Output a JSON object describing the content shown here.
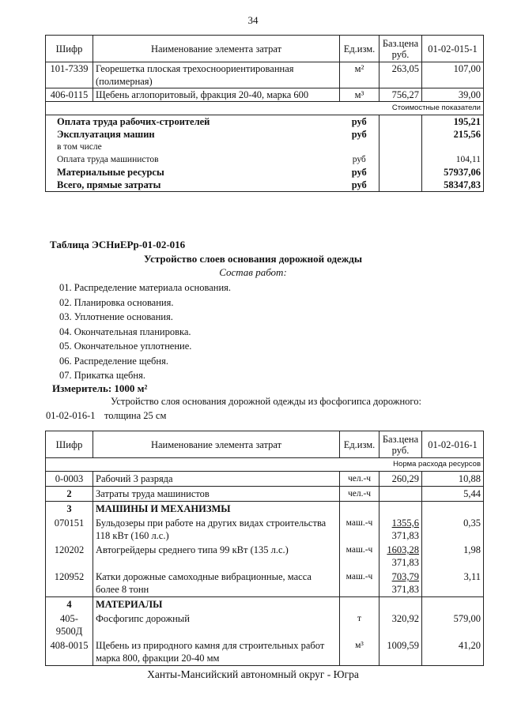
{
  "page_number": "34",
  "headers": {
    "code": "Шифр",
    "name": "Наименование элемента затрат",
    "unit": "Ед.изм.",
    "price": "Баз.цена руб.",
    "norm1": "01-02-015-1",
    "norm2": "01-02-016-1"
  },
  "table1": {
    "rows": [
      {
        "code": "101-7339",
        "name": "Георешетка плоская трехосноориентированная (полимерная)",
        "unit": "м²",
        "price": "263,05",
        "value": "107,00"
      },
      {
        "code": "406-0115",
        "name": "Щебень аглопоритовый, фракция 20-40, марка 600",
        "unit": "м³",
        "price": "756,27",
        "value": "39,00"
      }
    ],
    "section_label": "Стоимостные показатели",
    "costs": [
      {
        "name": "Оплата труда рабочих-строителей",
        "unit": "руб",
        "value": "195,21",
        "bold": true
      },
      {
        "name": "Эксплуатация машин",
        "unit": "руб",
        "value": "215,56",
        "bold": true
      },
      {
        "name": "в том числе",
        "unit": "",
        "value": "",
        "bold": false
      },
      {
        "name": "Оплата труда машинистов",
        "unit": "руб",
        "value": "104,11",
        "bold": false
      },
      {
        "name": "Материальные ресурсы",
        "unit": "руб",
        "value": "57937,06",
        "bold": true
      },
      {
        "name": "Всего, прямые затраты",
        "unit": "руб",
        "value": "58347,83",
        "bold": true
      }
    ]
  },
  "table_title": "Таблица  ЭСНиЕРр-01-02-016",
  "section_title": "Устройство слоев основания дорожной одежды",
  "works_title": "Состав работ:",
  "works": [
    "01. Распределение материала основания.",
    "02. Планировка основания.",
    "03. Уплотнение основания.",
    "04. Окончательная планировка.",
    "05. Окончательное уплотнение.",
    "06. Распределение щебня.",
    "07. Прикатка щебня."
  ],
  "measure": "Измеритель: 1000 м²",
  "description": "Устройство слоя основания дорожной одежды из фосфогипса дорожного:",
  "variant_code": "01-02-016-1",
  "variant_text": "толщина 25 см",
  "table2": {
    "section_label": "Норма расхода ресурсов",
    "rows": [
      {
        "code": "0-0003",
        "name": "Рабочий 3 разряда",
        "unit": "чел.-ч",
        "price": "260,29",
        "price2": "",
        "value": "10,88",
        "type": "line"
      },
      {
        "code": "2",
        "name": "Затраты труда машинистов",
        "unit": "чел.-ч",
        "price": "",
        "price2": "",
        "value": "5,44",
        "type": "lineb"
      },
      {
        "code": "3",
        "name": "МАШИНЫ И МЕХАНИЗМЫ",
        "unit": "",
        "price": "",
        "price2": "",
        "value": "",
        "type": "head"
      },
      {
        "code": "070151",
        "name": "Бульдозеры при работе на других видах строительства 118 кВт (160 л.с.)",
        "unit": "маш.-ч",
        "price": "1355,6",
        "price2": "371,83",
        "value": "0,35",
        "type": "item"
      },
      {
        "code": "120202",
        "name": "Автогрейдеры среднего типа 99 кВт (135 л.с.)",
        "unit": "маш.-ч",
        "price": "1603,28",
        "price2": "371,83",
        "value": "1,98",
        "type": "item"
      },
      {
        "code": "120952",
        "name": "Катки дорожные самоходные вибрационные, масса более 8 тонн",
        "unit": "маш.-ч",
        "price": "703,79",
        "price2": "371,83",
        "value": "3,11",
        "type": "item"
      },
      {
        "code": "4",
        "name": "МАТЕРИАЛЫ",
        "unit": "",
        "price": "",
        "price2": "",
        "value": "",
        "type": "head"
      },
      {
        "code": "405-9500Д",
        "name": "Фосфогипс дорожный",
        "unit": "т",
        "price": "320,92",
        "price2": "",
        "value": "579,00",
        "type": "item"
      },
      {
        "code": "408-0015",
        "name": "Щебень из природного камня для строительных работ марка 800, фракции 20-40 мм",
        "unit": "м³",
        "price": "1009,59",
        "price2": "",
        "value": "41,20",
        "type": "item"
      }
    ]
  },
  "footer": "Ханты-Мансийский автономный округ - Югра"
}
